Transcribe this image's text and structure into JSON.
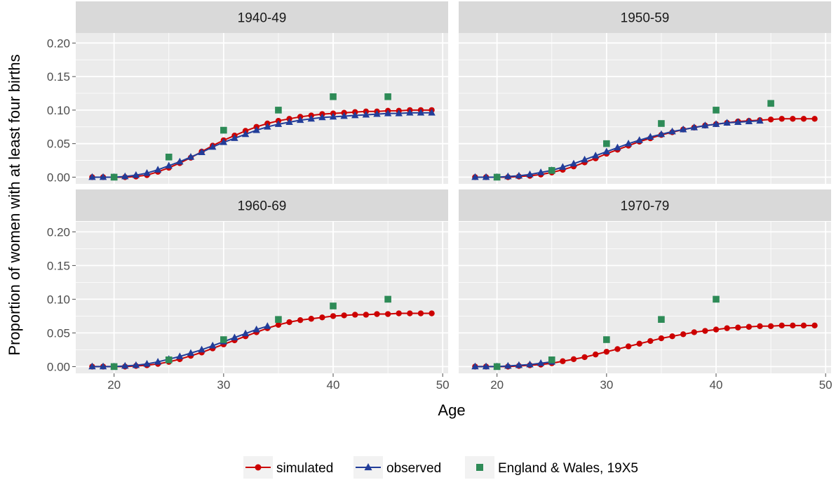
{
  "chart_data": {
    "type": "line",
    "xlabel": "Age",
    "ylabel": "Proportion of women with at least four births",
    "xlim": [
      16.5,
      50.5
    ],
    "ylim": [
      -0.01,
      0.215
    ],
    "x_ticks": [
      20,
      30,
      40,
      50
    ],
    "y_ticks": [
      0.0,
      0.05,
      0.1,
      0.15,
      0.2
    ],
    "y_tick_labels": [
      "0.00",
      "0.05",
      "0.10",
      "0.15",
      "0.20"
    ],
    "grid": true,
    "legend_position": "bottom",
    "colors": {
      "simulated": "#cc0000",
      "observed": "#223d99",
      "ew": "#2e8b57",
      "panel_bg": "#ebebeb",
      "strip_bg": "#d9d9d9",
      "grid": "#ffffff"
    },
    "legend": [
      {
        "key": "simulated",
        "label": "simulated"
      },
      {
        "key": "observed",
        "label": "observed"
      },
      {
        "key": "ew",
        "label": "England & Wales, 19X5"
      }
    ],
    "panels": [
      {
        "title": "1940-49",
        "simulated": {
          "x_start": 18,
          "values": [
            0.0,
            0.0,
            0.0,
            0.0,
            0.001,
            0.003,
            0.008,
            0.014,
            0.021,
            0.029,
            0.038,
            0.047,
            0.055,
            0.062,
            0.069,
            0.075,
            0.08,
            0.084,
            0.087,
            0.09,
            0.092,
            0.094,
            0.095,
            0.096,
            0.097,
            0.098,
            0.098,
            0.099,
            0.099,
            0.1,
            0.1,
            0.1
          ]
        },
        "observed": {
          "x_start": 18,
          "values": [
            0.0,
            0.0,
            0.0,
            0.001,
            0.003,
            0.006,
            0.011,
            0.017,
            0.023,
            0.03,
            0.037,
            0.045,
            0.052,
            0.058,
            0.064,
            0.07,
            0.075,
            0.079,
            0.082,
            0.085,
            0.087,
            0.089,
            0.09,
            0.091,
            0.092,
            0.093,
            0.094,
            0.095,
            0.095,
            0.096,
            0.096,
            0.096
          ]
        },
        "ew": {
          "x": [
            20,
            25,
            30,
            35,
            40,
            45
          ],
          "values": [
            0.0,
            0.03,
            0.07,
            0.1,
            0.12,
            0.12
          ]
        }
      },
      {
        "title": "1950-59",
        "simulated": {
          "x_start": 18,
          "values": [
            0.0,
            0.0,
            0.0,
            0.0,
            0.001,
            0.002,
            0.004,
            0.007,
            0.011,
            0.016,
            0.022,
            0.028,
            0.035,
            0.041,
            0.047,
            0.053,
            0.058,
            0.063,
            0.067,
            0.071,
            0.074,
            0.077,
            0.079,
            0.081,
            0.083,
            0.084,
            0.085,
            0.086,
            0.087,
            0.087,
            0.087,
            0.087
          ]
        },
        "observed": {
          "x_start": 18,
          "values": [
            0.0,
            0.0,
            0.0,
            0.001,
            0.002,
            0.004,
            0.007,
            0.01,
            0.015,
            0.02,
            0.026,
            0.032,
            0.038,
            0.044,
            0.05,
            0.055,
            0.06,
            0.064,
            0.068,
            0.071,
            0.074,
            0.077,
            0.079,
            0.081,
            0.082,
            0.083,
            0.084
          ]
        },
        "ew": {
          "x": [
            20,
            25,
            30,
            35,
            40,
            45
          ],
          "values": [
            0.0,
            0.01,
            0.05,
            0.08,
            0.1,
            0.11
          ]
        }
      },
      {
        "title": "1960-69",
        "simulated": {
          "x_start": 18,
          "values": [
            0.0,
            0.0,
            0.0,
            0.0,
            0.001,
            0.002,
            0.004,
            0.007,
            0.011,
            0.016,
            0.021,
            0.027,
            0.033,
            0.039,
            0.045,
            0.051,
            0.057,
            0.062,
            0.066,
            0.069,
            0.071,
            0.073,
            0.075,
            0.076,
            0.077,
            0.077,
            0.078,
            0.078,
            0.079,
            0.079,
            0.079,
            0.079
          ]
        },
        "observed": {
          "x_start": 18,
          "values": [
            0.0,
            0.0,
            0.0,
            0.001,
            0.002,
            0.004,
            0.007,
            0.011,
            0.015,
            0.02,
            0.025,
            0.031,
            0.037,
            0.043,
            0.049,
            0.055,
            0.06
          ]
        },
        "ew": {
          "x": [
            20,
            25,
            30,
            35,
            40,
            45
          ],
          "values": [
            0.0,
            0.01,
            0.04,
            0.07,
            0.09,
            0.1
          ]
        }
      },
      {
        "title": "1970-79",
        "simulated": {
          "x_start": 18,
          "values": [
            0.0,
            0.0,
            0.0,
            0.0,
            0.001,
            0.002,
            0.003,
            0.005,
            0.008,
            0.011,
            0.014,
            0.018,
            0.022,
            0.026,
            0.03,
            0.034,
            0.038,
            0.042,
            0.045,
            0.048,
            0.051,
            0.053,
            0.055,
            0.057,
            0.058,
            0.059,
            0.06,
            0.06,
            0.061,
            0.061,
            0.061,
            0.061
          ]
        },
        "observed": {
          "x_start": 18,
          "values": [
            0.0,
            0.0,
            0.0,
            0.001,
            0.002,
            0.003,
            0.005,
            0.007
          ]
        },
        "ew": {
          "x": [
            20,
            25,
            30,
            35,
            40
          ],
          "values": [
            0.0,
            0.01,
            0.04,
            0.07,
            0.1
          ]
        }
      }
    ]
  }
}
